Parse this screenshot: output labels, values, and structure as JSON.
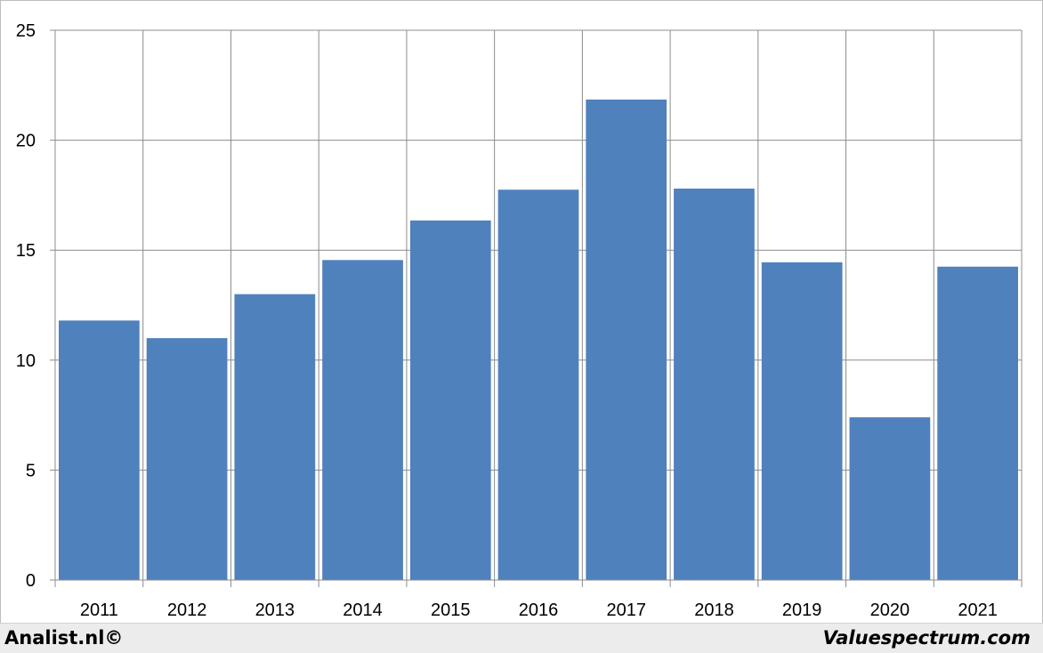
{
  "chart_data": {
    "type": "bar",
    "categories": [
      "2011",
      "2012",
      "2013",
      "2014",
      "2015",
      "2016",
      "2017",
      "2018",
      "2019",
      "2020",
      "2021"
    ],
    "values": [
      11.8,
      11.0,
      13.0,
      14.55,
      16.35,
      17.75,
      21.85,
      17.8,
      14.45,
      7.4,
      14.25
    ],
    "ylim": [
      0,
      25
    ],
    "yticks": [
      "0",
      "5",
      "10",
      "15",
      "20",
      "25"
    ],
    "grid": true,
    "bar_color": "#4f81bd",
    "title": "",
    "xlabel": "",
    "ylabel": ""
  },
  "footer": {
    "left_credit": "Analist.nl©",
    "right_credit": "Valuespectrum.com"
  }
}
